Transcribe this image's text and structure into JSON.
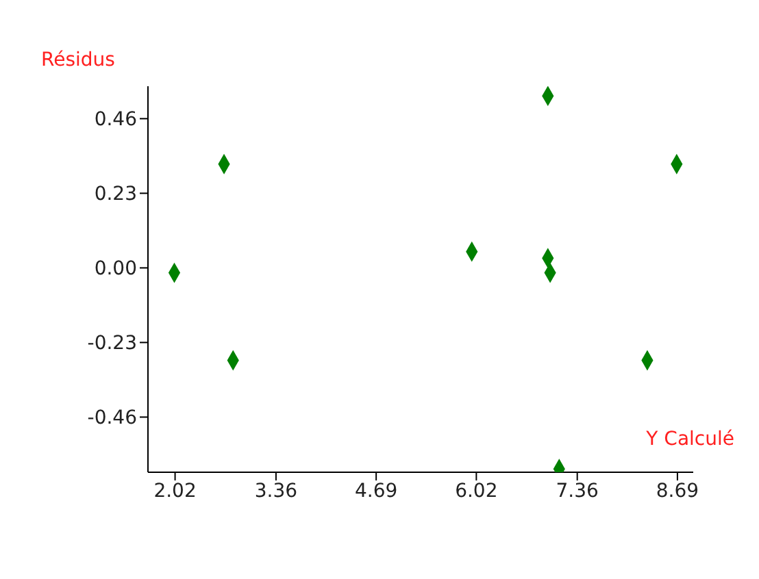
{
  "chart_data": {
    "type": "scatter",
    "xlabel": "Y Calculé",
    "ylabel": "Résidus",
    "marker": "diamond",
    "grid": false,
    "legend": false,
    "x": [
      2.01,
      2.67,
      2.79,
      5.96,
      6.97,
      6.97,
      7.0,
      7.12,
      8.68,
      8.29
    ],
    "series": [
      {
        "color": "#008000",
        "values": [
          -0.015,
          0.32,
          -0.285,
          0.05,
          0.53,
          0.03,
          -0.015,
          -0.62,
          0.32,
          -0.285
        ]
      }
    ],
    "xlim": [
      1.66,
      8.9
    ],
    "xticks": [
      2.02,
      3.36,
      4.69,
      6.02,
      7.36,
      8.69
    ],
    "ylim": [
      -0.63,
      0.56
    ],
    "yticks": [
      -0.46,
      -0.23,
      {
        "value": 0,
        "label": "0.00"
      },
      0.23,
      0.46
    ]
  }
}
